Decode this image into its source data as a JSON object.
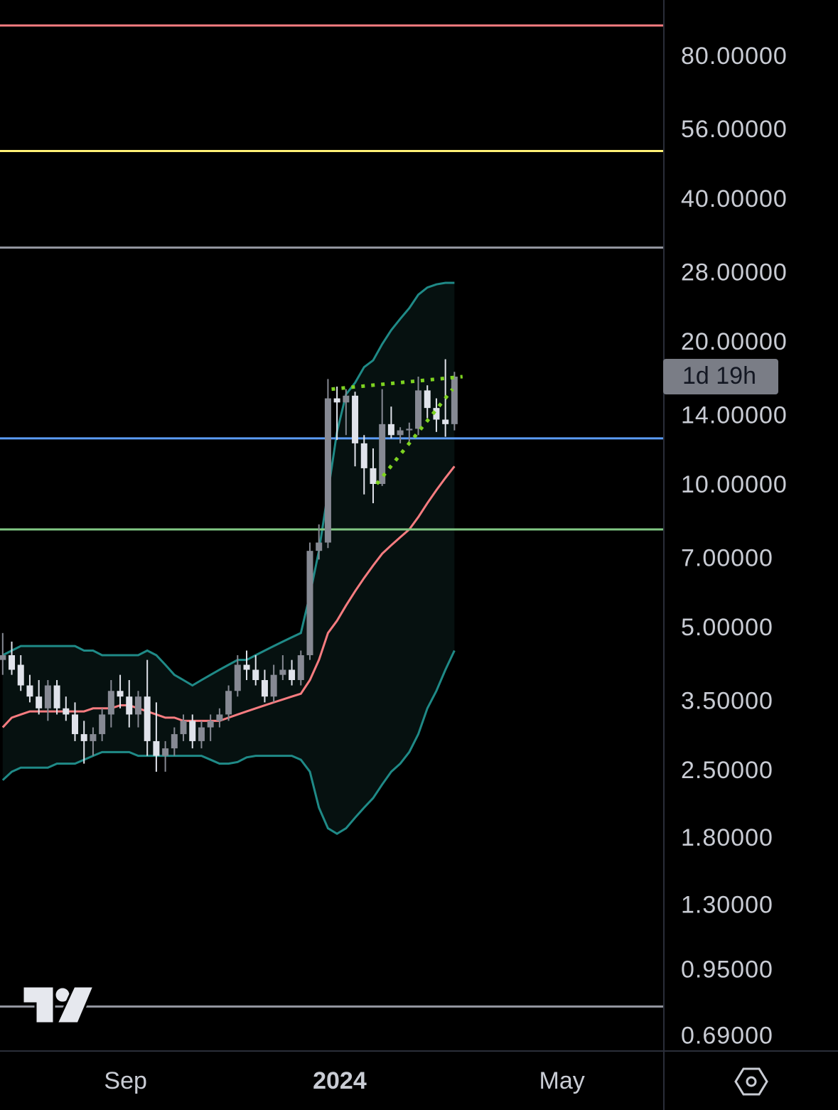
{
  "chart_data": {
    "type": "candlestick",
    "log_scale": true,
    "grid": false,
    "x": [
      0,
      1,
      2,
      3,
      4,
      5,
      6,
      7,
      8,
      9,
      10,
      11,
      12,
      13,
      14,
      15,
      16,
      17,
      18,
      19,
      20,
      21,
      22,
      23,
      24,
      25,
      26,
      27,
      28,
      29,
      30,
      31,
      32,
      33,
      34,
      35,
      36,
      37,
      38,
      39,
      40,
      41,
      42,
      43,
      44,
      45,
      46,
      47,
      48,
      49,
      50
    ],
    "xlim": [
      -0.3,
      73.1
    ],
    "xticks": [
      {
        "value": 13.6,
        "label": "Sep"
      },
      {
        "value": 37.3,
        "label": "2024",
        "bold": true
      },
      {
        "value": 61.9,
        "label": "May"
      }
    ],
    "ylim": [
      0.647,
      105.7
    ],
    "yticks": [
      {
        "value": 80,
        "label": "80.00000"
      },
      {
        "value": 56,
        "label": "56.00000"
      },
      {
        "value": 40,
        "label": "40.00000"
      },
      {
        "value": 28,
        "label": "28.00000"
      },
      {
        "value": 20,
        "label": "20.00000"
      },
      {
        "value": 14,
        "label": "14.00000"
      },
      {
        "value": 10,
        "label": "10.00000"
      },
      {
        "value": 7,
        "label": "7.00000"
      },
      {
        "value": 5,
        "label": "5.00000"
      },
      {
        "value": 3.5,
        "label": "3.50000"
      },
      {
        "value": 2.5,
        "label": "2.50000"
      },
      {
        "value": 1.8,
        "label": "1.80000"
      },
      {
        "value": 1.3,
        "label": "1.30000"
      },
      {
        "value": 0.95,
        "label": "0.95000"
      },
      {
        "value": 0.69,
        "label": "0.69000"
      }
    ],
    "up_color": "#868993",
    "down_color": "#e0e3eb",
    "open": [
      4.3,
      4.4,
      4.2,
      3.8,
      3.6,
      3.4,
      3.8,
      3.4,
      3.3,
      3.0,
      2.9,
      3.0,
      3.3,
      3.7,
      3.6,
      3.3,
      3.6,
      2.9,
      2.7,
      2.8,
      3.0,
      3.2,
      2.9,
      3.1,
      3.2,
      3.3,
      3.7,
      4.2,
      4.1,
      3.9,
      3.6,
      4.0,
      4.1,
      3.9,
      4.4,
      7.3,
      7.6,
      15.3,
      15.0,
      15.5,
      12.3,
      10.9,
      10.1,
      13.5,
      12.8,
      13.1,
      13.2,
      15.9,
      14.6,
      13.8,
      13.5
    ],
    "high": [
      4.9,
      4.7,
      4.4,
      4.0,
      3.9,
      3.9,
      3.9,
      3.6,
      3.5,
      3.2,
      3.1,
      3.4,
      3.9,
      4.0,
      3.9,
      3.7,
      4.3,
      3.5,
      2.9,
      3.1,
      3.3,
      3.3,
      3.2,
      3.3,
      3.4,
      3.8,
      4.4,
      4.5,
      4.4,
      4.1,
      4.2,
      4.4,
      4.3,
      4.5,
      7.6,
      8.3,
      16.8,
      16.2,
      16.0,
      15.8,
      12.8,
      12.0,
      16.0,
      14.7,
      13.3,
      13.6,
      17.0,
      16.3,
      15.3,
      18.5,
      17.4
    ],
    "low": [
      4.0,
      4.0,
      3.7,
      3.5,
      3.3,
      3.2,
      3.3,
      3.2,
      2.9,
      2.6,
      2.7,
      2.9,
      3.1,
      3.4,
      3.1,
      3.1,
      2.7,
      2.5,
      2.5,
      2.7,
      2.9,
      2.8,
      2.8,
      2.9,
      3.1,
      3.2,
      3.6,
      3.9,
      3.8,
      3.5,
      3.5,
      3.9,
      3.8,
      3.8,
      4.3,
      7.0,
      7.4,
      12.5,
      12.8,
      11.0,
      9.6,
      9.2,
      10.0,
      12.6,
      12.3,
      12.4,
      12.8,
      13.9,
      13.0,
      12.7,
      13.1
    ],
    "close": [
      4.4,
      4.1,
      3.8,
      3.6,
      3.4,
      3.8,
      3.4,
      3.3,
      3.0,
      2.9,
      3.0,
      3.3,
      3.7,
      3.6,
      3.3,
      3.6,
      2.9,
      2.7,
      2.8,
      3.0,
      3.2,
      2.9,
      3.1,
      3.2,
      3.3,
      3.7,
      4.2,
      4.1,
      3.9,
      3.6,
      4.0,
      4.1,
      3.9,
      4.4,
      7.3,
      7.6,
      15.3,
      15.0,
      15.5,
      12.3,
      10.9,
      10.1,
      13.5,
      12.8,
      13.1,
      13.2,
      15.9,
      14.6,
      13.8,
      13.5,
      17.0
    ],
    "bands": {
      "fill": "#061110",
      "upper": {
        "color": "#1f8a87",
        "values": [
          4.4,
          4.5,
          4.6,
          4.6,
          4.6,
          4.6,
          4.6,
          4.6,
          4.6,
          4.5,
          4.5,
          4.4,
          4.4,
          4.4,
          4.4,
          4.4,
          4.5,
          4.4,
          4.2,
          4.0,
          3.9,
          3.8,
          3.9,
          4.0,
          4.1,
          4.2,
          4.3,
          4.3,
          4.4,
          4.5,
          4.6,
          4.7,
          4.8,
          4.9,
          5.9,
          7.3,
          9.7,
          13.0,
          15.6,
          16.5,
          17.8,
          18.4,
          19.9,
          21.3,
          22.5,
          23.7,
          25.3,
          26.2,
          26.6,
          26.8,
          26.8
        ]
      },
      "lower": {
        "color": "#1f8a87",
        "values": [
          2.4,
          2.5,
          2.55,
          2.55,
          2.55,
          2.55,
          2.6,
          2.6,
          2.6,
          2.65,
          2.7,
          2.75,
          2.75,
          2.75,
          2.75,
          2.7,
          2.7,
          2.7,
          2.7,
          2.7,
          2.7,
          2.7,
          2.7,
          2.65,
          2.6,
          2.6,
          2.62,
          2.68,
          2.7,
          2.7,
          2.7,
          2.7,
          2.7,
          2.65,
          2.5,
          2.1,
          1.9,
          1.85,
          1.9,
          2.0,
          2.1,
          2.2,
          2.35,
          2.5,
          2.6,
          2.75,
          3.0,
          3.4,
          3.7,
          4.1,
          4.5
        ]
      },
      "basis": {
        "color": "#f77c80",
        "values": [
          3.1,
          3.25,
          3.3,
          3.35,
          3.35,
          3.35,
          3.35,
          3.35,
          3.35,
          3.35,
          3.4,
          3.4,
          3.4,
          3.45,
          3.45,
          3.4,
          3.35,
          3.3,
          3.25,
          3.25,
          3.2,
          3.2,
          3.2,
          3.2,
          3.2,
          3.25,
          3.3,
          3.35,
          3.4,
          3.45,
          3.5,
          3.55,
          3.6,
          3.65,
          3.9,
          4.3,
          4.9,
          5.2,
          5.6,
          6.0,
          6.4,
          6.8,
          7.2,
          7.5,
          7.8,
          8.1,
          8.6,
          9.2,
          9.8,
          10.4,
          11.0
        ]
      }
    },
    "levels": [
      {
        "value": 93.4,
        "color": "#f77c80"
      },
      {
        "value": 50.8,
        "color": "#fff176"
      },
      {
        "value": 31.8,
        "color": "#9598a1"
      },
      {
        "value": 12.6,
        "color": "#5b9cf6"
      },
      {
        "value": 8.1,
        "color": "#81c784"
      },
      {
        "value": 0.8,
        "color": "#9598a1"
      }
    ],
    "trendlines": [
      {
        "color": "#7ed321",
        "x": [
          36.4,
          50.9
        ],
        "values": [
          16.0,
          17.0
        ]
      },
      {
        "color": "#7ed321",
        "x": [
          41.4,
          49.8
        ],
        "values": [
          10.1,
          16.0
        ]
      }
    ],
    "countdown": "1d 19h"
  }
}
